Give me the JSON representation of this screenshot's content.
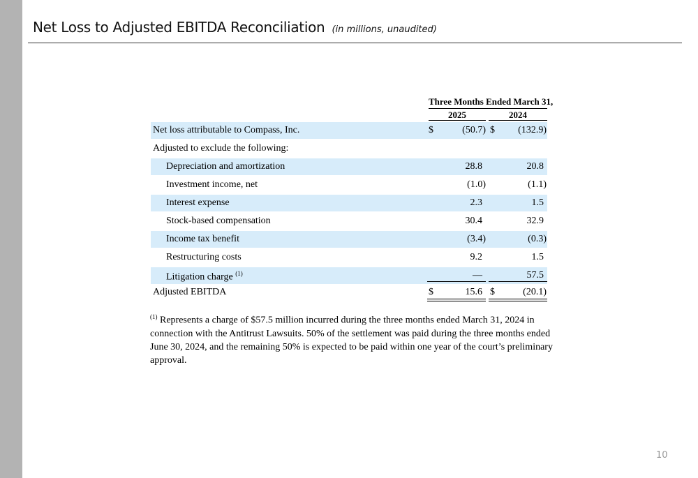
{
  "page": {
    "title": "Net Loss to Adjusted EBITDA Reconciliation",
    "subtitle": "(in millions, unaudited)",
    "page_number": "10"
  },
  "table": {
    "period_header": "Three Months Ended March 31,",
    "years": [
      "2025",
      "2024"
    ],
    "currency_symbol": "$",
    "rows": [
      {
        "label": "Net loss attributable to Compass, Inc.",
        "v2025": "(50.7)",
        "v2024": "(132.9)"
      },
      {
        "label": "Adjusted to exclude the following:",
        "v2025": "",
        "v2024": ""
      },
      {
        "label": "Depreciation and amortization",
        "v2025": "28.8",
        "v2024": "20.8"
      },
      {
        "label": "Investment income, net",
        "v2025": "(1.0)",
        "v2024": "(1.1)"
      },
      {
        "label": "Interest expense",
        "v2025": "2.3",
        "v2024": "1.5"
      },
      {
        "label": "Stock-based compensation",
        "v2025": "30.4",
        "v2024": "32.9"
      },
      {
        "label": "Income tax benefit",
        "v2025": "(3.4)",
        "v2024": "(0.3)"
      },
      {
        "label": "Restructuring costs",
        "v2025": "9.2",
        "v2024": "1.5"
      },
      {
        "label": "Litigation charge",
        "footnote_marker": "(1)",
        "v2025": "—",
        "v2024": "57.5"
      },
      {
        "label": "Adjusted EBITDA",
        "v2025": "15.6",
        "v2024": "(20.1)"
      }
    ]
  },
  "footnote": {
    "marker": "(1)",
    "text": "Represents a charge of $57.5 million incurred during the three months ended March 31, 2024 in connection with the Antitrust Lawsuits. 50% of the settlement was paid during the three months ended June 30, 2024, and the remaining 50% is expected to be paid within one year of the court’s preliminary approval."
  },
  "colors": {
    "row_shading": "#d7ecfa",
    "side_bar": "#b3b3b3"
  }
}
